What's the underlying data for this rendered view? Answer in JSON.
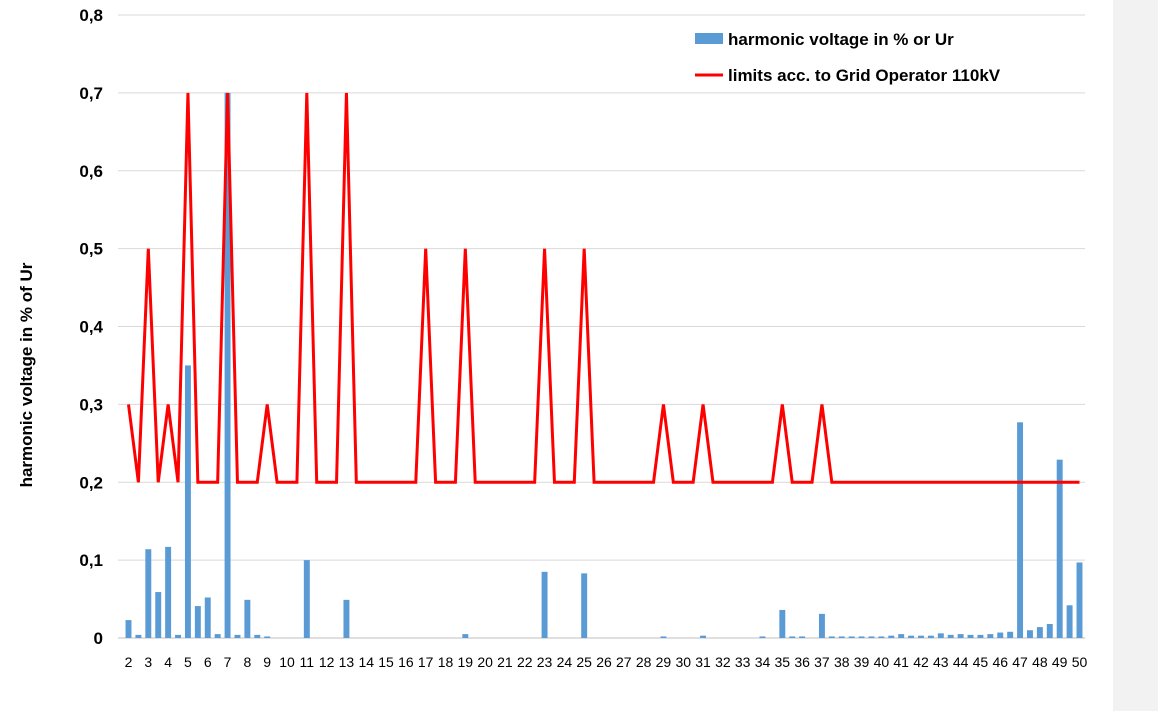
{
  "chart_data": {
    "type": "bar",
    "title": "",
    "xlabel": "",
    "ylabel": "harmonic voltage in % of Ur",
    "ylim": [
      0,
      0.8
    ],
    "yticks": [
      "0",
      "0,1",
      "0,2",
      "0,3",
      "0,4",
      "0,5",
      "0,6",
      "0,7",
      "0,8"
    ],
    "grid": "horizontal",
    "legend_position": "top-right",
    "x_labeled": [
      "2",
      "3",
      "4",
      "5",
      "6",
      "7",
      "8",
      "9",
      "10",
      "11",
      "12",
      "13",
      "14",
      "15",
      "16",
      "17",
      "18",
      "19",
      "20",
      "21",
      "22",
      "23",
      "24",
      "25",
      "26",
      "27",
      "28",
      "29",
      "30",
      "31",
      "32",
      "33",
      "34",
      "35",
      "36",
      "37",
      "38",
      "39",
      "40",
      "41",
      "42",
      "43",
      "44",
      "45",
      "46",
      "47",
      "48",
      "49",
      "50"
    ],
    "categories": [
      2,
      2.5,
      3,
      3.5,
      4,
      4.5,
      5,
      5.5,
      6,
      6.5,
      7,
      7.5,
      8,
      8.5,
      9,
      9.5,
      10,
      10.5,
      11,
      11.5,
      12,
      12.5,
      13,
      13.5,
      14,
      14.5,
      15,
      15.5,
      16,
      16.5,
      17,
      17.5,
      18,
      18.5,
      19,
      19.5,
      20,
      20.5,
      21,
      21.5,
      22,
      22.5,
      23,
      23.5,
      24,
      24.5,
      25,
      25.5,
      26,
      26.5,
      27,
      27.5,
      28,
      28.5,
      29,
      29.5,
      30,
      30.5,
      31,
      31.5,
      32,
      32.5,
      33,
      33.5,
      34,
      34.5,
      35,
      35.5,
      36,
      36.5,
      37,
      37.5,
      38,
      38.5,
      39,
      39.5,
      40,
      40.5,
      41,
      41.5,
      42,
      42.5,
      43,
      43.5,
      44,
      44.5,
      45,
      45.5,
      46,
      46.5,
      47,
      47.5,
      48,
      48.5,
      49,
      49.5,
      50
    ],
    "series": [
      {
        "name": "harmonic voltage in % or Ur",
        "kind": "bar",
        "color": "#5b9bd5",
        "values": [
          0.023,
          0.004,
          0.114,
          0.059,
          0.117,
          0.004,
          0.35,
          0.041,
          0.052,
          0.005,
          0.7,
          0.004,
          0.049,
          0.004,
          0.002,
          0,
          0,
          0,
          0.1,
          0,
          0,
          0,
          0.049,
          0,
          0,
          0,
          0,
          0,
          0,
          0,
          0,
          0,
          0,
          0,
          0.005,
          0,
          0,
          0,
          0,
          0,
          0,
          0,
          0.085,
          0,
          0,
          0,
          0.083,
          0,
          0,
          0,
          0,
          0,
          0,
          0,
          0.002,
          0,
          0,
          0,
          0.003,
          0,
          0,
          0,
          0,
          0,
          0.002,
          0,
          0.036,
          0.002,
          0.002,
          0,
          0.031,
          0.002,
          0.002,
          0.002,
          0.002,
          0.002,
          0.002,
          0.003,
          0.005,
          0.003,
          0.003,
          0.003,
          0.006,
          0.004,
          0.005,
          0.004,
          0.004,
          0.005,
          0.007,
          0.008,
          0.277,
          0.01,
          0.014,
          0.018,
          0.229,
          0.042,
          0.097
        ]
      },
      {
        "name": "limits acc. to Grid Operator 110kV",
        "kind": "line",
        "color": "#ff0000",
        "values": [
          0.3,
          0.2,
          0.5,
          0.2,
          0.3,
          0.2,
          0.7,
          0.2,
          0.2,
          0.2,
          0.7,
          0.2,
          0.2,
          0.2,
          0.3,
          0.2,
          0.2,
          0.2,
          0.7,
          0.2,
          0.2,
          0.2,
          0.7,
          0.2,
          0.2,
          0.2,
          0.2,
          0.2,
          0.2,
          0.2,
          0.5,
          0.2,
          0.2,
          0.2,
          0.5,
          0.2,
          0.2,
          0.2,
          0.2,
          0.2,
          0.2,
          0.2,
          0.5,
          0.2,
          0.2,
          0.2,
          0.5,
          0.2,
          0.2,
          0.2,
          0.2,
          0.2,
          0.2,
          0.2,
          0.3,
          0.2,
          0.2,
          0.2,
          0.3,
          0.2,
          0.2,
          0.2,
          0.2,
          0.2,
          0.2,
          0.2,
          0.3,
          0.2,
          0.2,
          0.2,
          0.3,
          0.2,
          0.2,
          0.2,
          0.2,
          0.2,
          0.2,
          0.2,
          0.2,
          0.2,
          0.2,
          0.2,
          0.2,
          0.2,
          0.2,
          0.2,
          0.2,
          0.2,
          0.2,
          0.2,
          0.2,
          0.2,
          0.2,
          0.2,
          0.2,
          0.2,
          0.2
        ]
      }
    ]
  }
}
